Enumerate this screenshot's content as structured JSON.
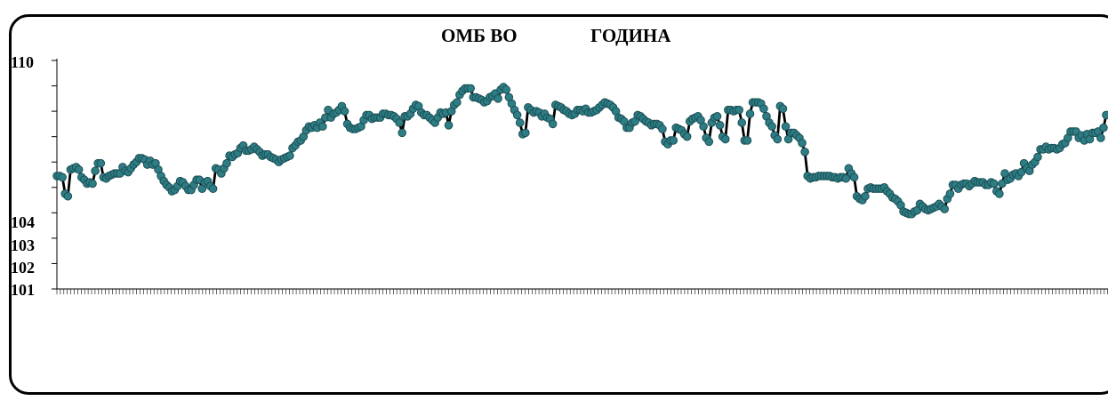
{
  "chart_data": {
    "type": "line",
    "title_parts": [
      "ОМБ ВО",
      "ГОДИНА"
    ],
    "y_tick_labels": [
      "110",
      "104",
      "103",
      "102",
      "101"
    ],
    "ylim": [
      101,
      110
    ],
    "y_ticks": [
      101,
      102,
      103,
      104,
      105,
      106,
      107,
      108,
      109,
      110
    ],
    "grid": false,
    "legend": "none",
    "colors": {
      "line": "#000000",
      "marker": "#2e7d84",
      "marker_edge": "#1a4f55"
    },
    "series": [
      {
        "values": [
          105.45,
          105.45,
          105.4,
          104.75,
          104.65,
          105.7,
          105.75,
          105.8,
          105.7,
          105.4,
          105.3,
          105.15,
          105.2,
          105.15,
          105.65,
          105.95,
          105.95,
          105.4,
          105.35,
          105.45,
          105.5,
          105.55,
          105.55,
          105.55,
          105.8,
          105.65,
          105.6,
          105.75,
          105.9,
          106.0,
          106.15,
          106.15,
          106.1,
          105.9,
          106.05,
          105.9,
          105.95,
          105.7,
          105.45,
          105.25,
          105.1,
          105.0,
          104.85,
          104.9,
          105.05,
          105.25,
          105.2,
          105.05,
          104.9,
          104.9,
          105.1,
          105.3,
          105.3,
          104.95,
          105.2,
          105.25,
          105.05,
          104.95,
          105.75,
          105.7,
          105.55,
          105.75,
          105.95,
          106.25,
          106.2,
          106.3,
          106.35,
          106.55,
          106.65,
          106.45,
          106.45,
          106.5,
          106.6,
          106.5,
          106.4,
          106.25,
          106.3,
          106.3,
          106.2,
          106.15,
          106.1,
          106.0,
          106.1,
          106.15,
          106.2,
          106.25,
          106.55,
          106.65,
          106.8,
          106.85,
          107.0,
          107.25,
          107.4,
          107.35,
          107.45,
          107.35,
          107.55,
          107.4,
          107.75,
          108.05,
          107.75,
          107.9,
          107.95,
          108.05,
          108.2,
          108.0,
          107.5,
          107.35,
          107.3,
          107.3,
          107.35,
          107.4,
          107.65,
          107.85,
          107.85,
          107.7,
          107.75,
          107.75,
          107.75,
          107.9,
          107.9,
          107.85,
          107.85,
          107.8,
          107.7,
          107.55,
          107.15,
          107.8,
          107.8,
          107.9,
          108.1,
          108.25,
          108.2,
          107.95,
          107.85,
          107.85,
          107.75,
          107.65,
          107.55,
          107.75,
          107.95,
          107.9,
          107.95,
          107.45,
          108.0,
          108.25,
          108.35,
          108.65,
          108.8,
          108.9,
          108.9,
          108.9,
          108.55,
          108.55,
          108.5,
          108.45,
          108.35,
          108.4,
          108.55,
          108.6,
          108.7,
          108.5,
          108.85,
          108.95,
          108.85,
          108.55,
          108.3,
          108.05,
          107.85,
          107.55,
          107.1,
          107.15,
          108.15,
          108.05,
          107.95,
          108.0,
          107.95,
          107.8,
          107.9,
          107.75,
          107.7,
          107.5,
          108.25,
          108.2,
          108.15,
          108.05,
          108.0,
          107.9,
          107.85,
          107.9,
          108.05,
          108.05,
          108.0,
          108.1,
          107.95,
          107.95,
          108.0,
          108.05,
          108.15,
          108.25,
          108.35,
          108.3,
          108.25,
          108.15,
          108.0,
          107.75,
          107.7,
          107.6,
          107.35,
          107.35,
          107.55,
          107.6,
          107.85,
          107.8,
          107.7,
          107.6,
          107.55,
          107.45,
          107.5,
          107.5,
          107.45,
          107.3,
          106.8,
          106.7,
          106.85,
          106.85,
          107.35,
          107.3,
          107.25,
          107.1,
          107.0,
          107.6,
          107.7,
          107.75,
          107.8,
          107.65,
          107.4,
          106.95,
          106.8,
          107.55,
          107.75,
          107.8,
          107.45,
          107.0,
          106.9,
          108.05,
          108.05,
          108.0,
          108.05,
          108.05,
          107.55,
          106.85,
          106.85,
          107.9,
          108.35,
          108.35,
          108.35,
          108.3,
          108.1,
          107.8,
          107.55,
          107.4,
          107.05,
          106.9,
          108.2,
          108.1,
          107.4,
          106.9,
          107.15,
          107.15,
          107.05,
          106.95,
          106.75,
          106.4,
          105.45,
          105.35,
          105.4,
          105.4,
          105.45,
          105.45,
          105.45,
          105.45,
          105.45,
          105.4,
          105.4,
          105.35,
          105.4,
          105.4,
          105.35,
          105.75,
          105.55,
          105.4,
          104.65,
          104.55,
          104.5,
          104.65,
          104.95,
          105.0,
          104.95,
          104.95,
          104.95,
          104.95,
          105.0,
          104.85,
          104.75,
          104.6,
          104.55,
          104.45,
          104.3,
          104.05,
          104.0,
          103.95,
          103.95,
          104.05,
          104.1,
          104.35,
          104.25,
          104.15,
          104.1,
          104.15,
          104.2,
          104.25,
          104.35,
          104.25,
          104.15,
          104.55,
          104.75,
          105.1,
          105.1,
          104.95,
          105.1,
          105.15,
          105.15,
          105.05,
          105.15,
          105.25,
          105.2,
          105.2,
          105.2,
          105.1,
          105.1,
          105.2,
          105.15,
          104.85,
          104.75,
          105.15,
          105.55,
          105.3,
          105.35,
          105.5,
          105.55,
          105.45,
          105.6,
          105.95,
          105.75,
          105.65,
          105.9,
          106.0,
          106.2,
          106.5,
          106.5,
          106.6,
          106.5,
          106.55,
          106.55,
          106.5,
          106.55,
          106.7,
          106.75,
          106.95,
          107.2,
          107.2,
          107.2,
          106.95,
          107.05,
          106.85,
          107.1,
          106.9,
          107.15,
          107.15,
          107.2,
          106.95,
          107.35,
          107.85
        ]
      }
    ]
  }
}
